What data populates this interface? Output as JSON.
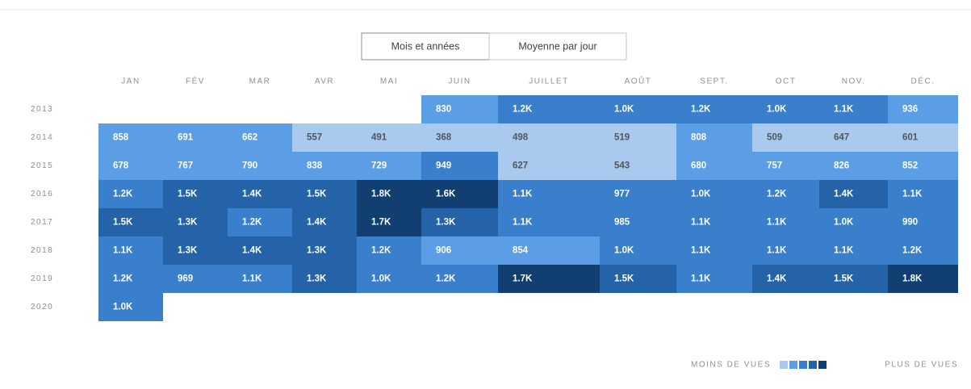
{
  "toggle": {
    "options": [
      "Mois et années",
      "Moyenne par jour"
    ],
    "selected": 0
  },
  "chart_data": {
    "type": "heatmap",
    "x_categories": [
      "JAN",
      "FÉV",
      "MAR",
      "AVR",
      "MAI",
      "JUIN",
      "JUILLET",
      "AOÛT",
      "SEPT.",
      "OCT",
      "NOV.",
      "DÉC."
    ],
    "y_categories": [
      "2013",
      "2014",
      "2015",
      "2016",
      "2017",
      "2018",
      "2019",
      "2020"
    ],
    "values": [
      [
        null,
        null,
        null,
        null,
        null,
        830,
        1200,
        1000,
        1200,
        1000,
        1100,
        936
      ],
      [
        858,
        691,
        662,
        557,
        491,
        368,
        498,
        519,
        808,
        509,
        647,
        601
      ],
      [
        678,
        767,
        790,
        838,
        729,
        949,
        627,
        543,
        680,
        757,
        826,
        852
      ],
      [
        1200,
        1500,
        1400,
        1500,
        1800,
        1600,
        1100,
        977,
        1000,
        1200,
        1400,
        1100
      ],
      [
        1500,
        1300,
        1200,
        1400,
        1700,
        1300,
        1100,
        985,
        1100,
        1100,
        1000,
        990
      ],
      [
        1100,
        1300,
        1400,
        1300,
        1200,
        906,
        854,
        1000,
        1100,
        1100,
        1100,
        1200
      ],
      [
        1200,
        969,
        1100,
        1300,
        1000,
        1200,
        1700,
        1500,
        1100,
        1400,
        1500,
        1800
      ],
      [
        1000,
        null,
        null,
        null,
        null,
        null,
        null,
        null,
        null,
        null,
        null,
        null
      ]
    ],
    "value_labels": [
      [
        null,
        null,
        null,
        null,
        null,
        "830",
        "1.2K",
        "1.0K",
        "1.2K",
        "1.0K",
        "1.1K",
        "936"
      ],
      [
        "858",
        "691",
        "662",
        "557",
        "491",
        "368",
        "498",
        "519",
        "808",
        "509",
        "647",
        "601"
      ],
      [
        "678",
        "767",
        "790",
        "838",
        "729",
        "949",
        "627",
        "543",
        "680",
        "757",
        "826",
        "852"
      ],
      [
        "1.2K",
        "1.5K",
        "1.4K",
        "1.5K",
        "1.8K",
        "1.6K",
        "1.1K",
        "977",
        "1.0K",
        "1.2K",
        "1.4K",
        "1.1K"
      ],
      [
        "1.5K",
        "1.3K",
        "1.2K",
        "1.4K",
        "1.7K",
        "1.3K",
        "1.1K",
        "985",
        "1.1K",
        "1.1K",
        "1.0K",
        "990"
      ],
      [
        "1.1K",
        "1.3K",
        "1.4K",
        "1.3K",
        "1.2K",
        "906",
        "854",
        "1.0K",
        "1.1K",
        "1.1K",
        "1.1K",
        "1.2K"
      ],
      [
        "1.2K",
        "969",
        "1.1K",
        "1.3K",
        "1.0K",
        "1.2K",
        "1.7K",
        "1.5K",
        "1.1K",
        "1.4K",
        "1.5K",
        "1.8K"
      ],
      [
        "1.0K",
        null,
        null,
        null,
        null,
        null,
        null,
        null,
        null,
        null,
        null,
        null
      ]
    ],
    "colors": [
      "#a9c9ee",
      "#5b9ee6",
      "#3a7fcc",
      "#2463a8",
      "#113f72"
    ],
    "legend": {
      "low": "MOINS DE VUES",
      "high": "PLUS DE VUES"
    }
  }
}
